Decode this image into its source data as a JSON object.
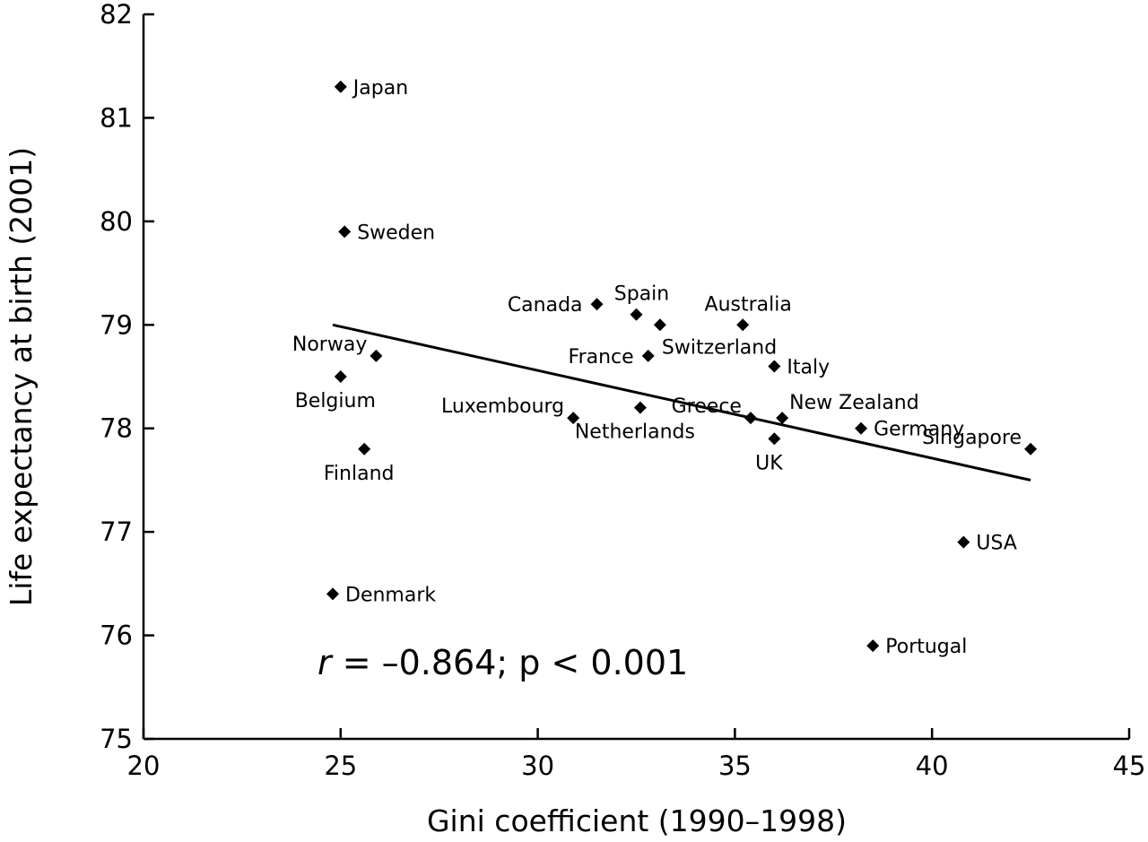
{
  "chart_data": {
    "type": "scatter",
    "xlabel": "Gini coefficient (1990–1998)",
    "ylabel": "Life expectancy at birth (2001)",
    "xlim": [
      20,
      45
    ],
    "ylim": [
      75,
      82
    ],
    "xticks": [
      20,
      25,
      30,
      35,
      40,
      45
    ],
    "yticks": [
      75,
      76,
      77,
      78,
      79,
      80,
      81,
      82
    ],
    "xtick_labels": [
      "20",
      "25",
      "30",
      "35",
      "40",
      "45"
    ],
    "ytick_labels": [
      "75",
      "76",
      "77",
      "78",
      "79",
      "80",
      "81",
      "82"
    ],
    "grid": false,
    "marker": "diamond",
    "color": "#000000",
    "points": [
      {
        "label": "Japan",
        "x": 25.0,
        "y": 81.3,
        "label_pos": "right"
      },
      {
        "label": "Sweden",
        "x": 25.1,
        "y": 79.9,
        "label_pos": "right"
      },
      {
        "label": "Norway",
        "x": 25.9,
        "y": 78.7,
        "label_pos": "upper-left"
      },
      {
        "label": "Belgium",
        "x": 25.0,
        "y": 78.5,
        "label_pos": "below"
      },
      {
        "label": "Finland",
        "x": 25.6,
        "y": 77.8,
        "label_pos": "below"
      },
      {
        "label": "Denmark",
        "x": 24.8,
        "y": 76.4,
        "label_pos": "right"
      },
      {
        "label": "Canada",
        "x": 31.5,
        "y": 79.2,
        "label_pos": "left"
      },
      {
        "label": "Spain",
        "x": 32.5,
        "y": 79.1,
        "label_pos": "above"
      },
      {
        "label": "Switzerland",
        "x": 33.1,
        "y": 79.0,
        "label_pos": "lower-right"
      },
      {
        "label": "France",
        "x": 32.8,
        "y": 78.7,
        "label_pos": "left"
      },
      {
        "label": "Luxembourg",
        "x": 30.9,
        "y": 78.1,
        "label_pos": "upper-left"
      },
      {
        "label": "Netherlands",
        "x": 32.6,
        "y": 78.2,
        "label_pos": "below"
      },
      {
        "label": "Australia",
        "x": 35.2,
        "y": 79.0,
        "label_pos": "above"
      },
      {
        "label": "Italy",
        "x": 36.0,
        "y": 78.6,
        "label_pos": "right"
      },
      {
        "label": "Greece",
        "x": 35.4,
        "y": 78.1,
        "label_pos": "upper-left"
      },
      {
        "label": "New Zealand",
        "x": 36.2,
        "y": 78.1,
        "label_pos": "upper-right"
      },
      {
        "label": "UK",
        "x": 36.0,
        "y": 77.9,
        "label_pos": "below"
      },
      {
        "label": "Germany",
        "x": 38.2,
        "y": 78.0,
        "label_pos": "right"
      },
      {
        "label": "Singapore",
        "x": 42.5,
        "y": 77.8,
        "label_pos": "upper-left"
      },
      {
        "label": "USA",
        "x": 40.8,
        "y": 76.9,
        "label_pos": "right"
      },
      {
        "label": "Portugal",
        "x": 38.5,
        "y": 75.9,
        "label_pos": "right"
      }
    ],
    "trendline": {
      "x": [
        24.8,
        42.5
      ],
      "y": [
        79.0,
        77.5
      ]
    },
    "annotation": {
      "r_symbol": "r",
      "text": " = –0.864; p < 0.001"
    }
  }
}
